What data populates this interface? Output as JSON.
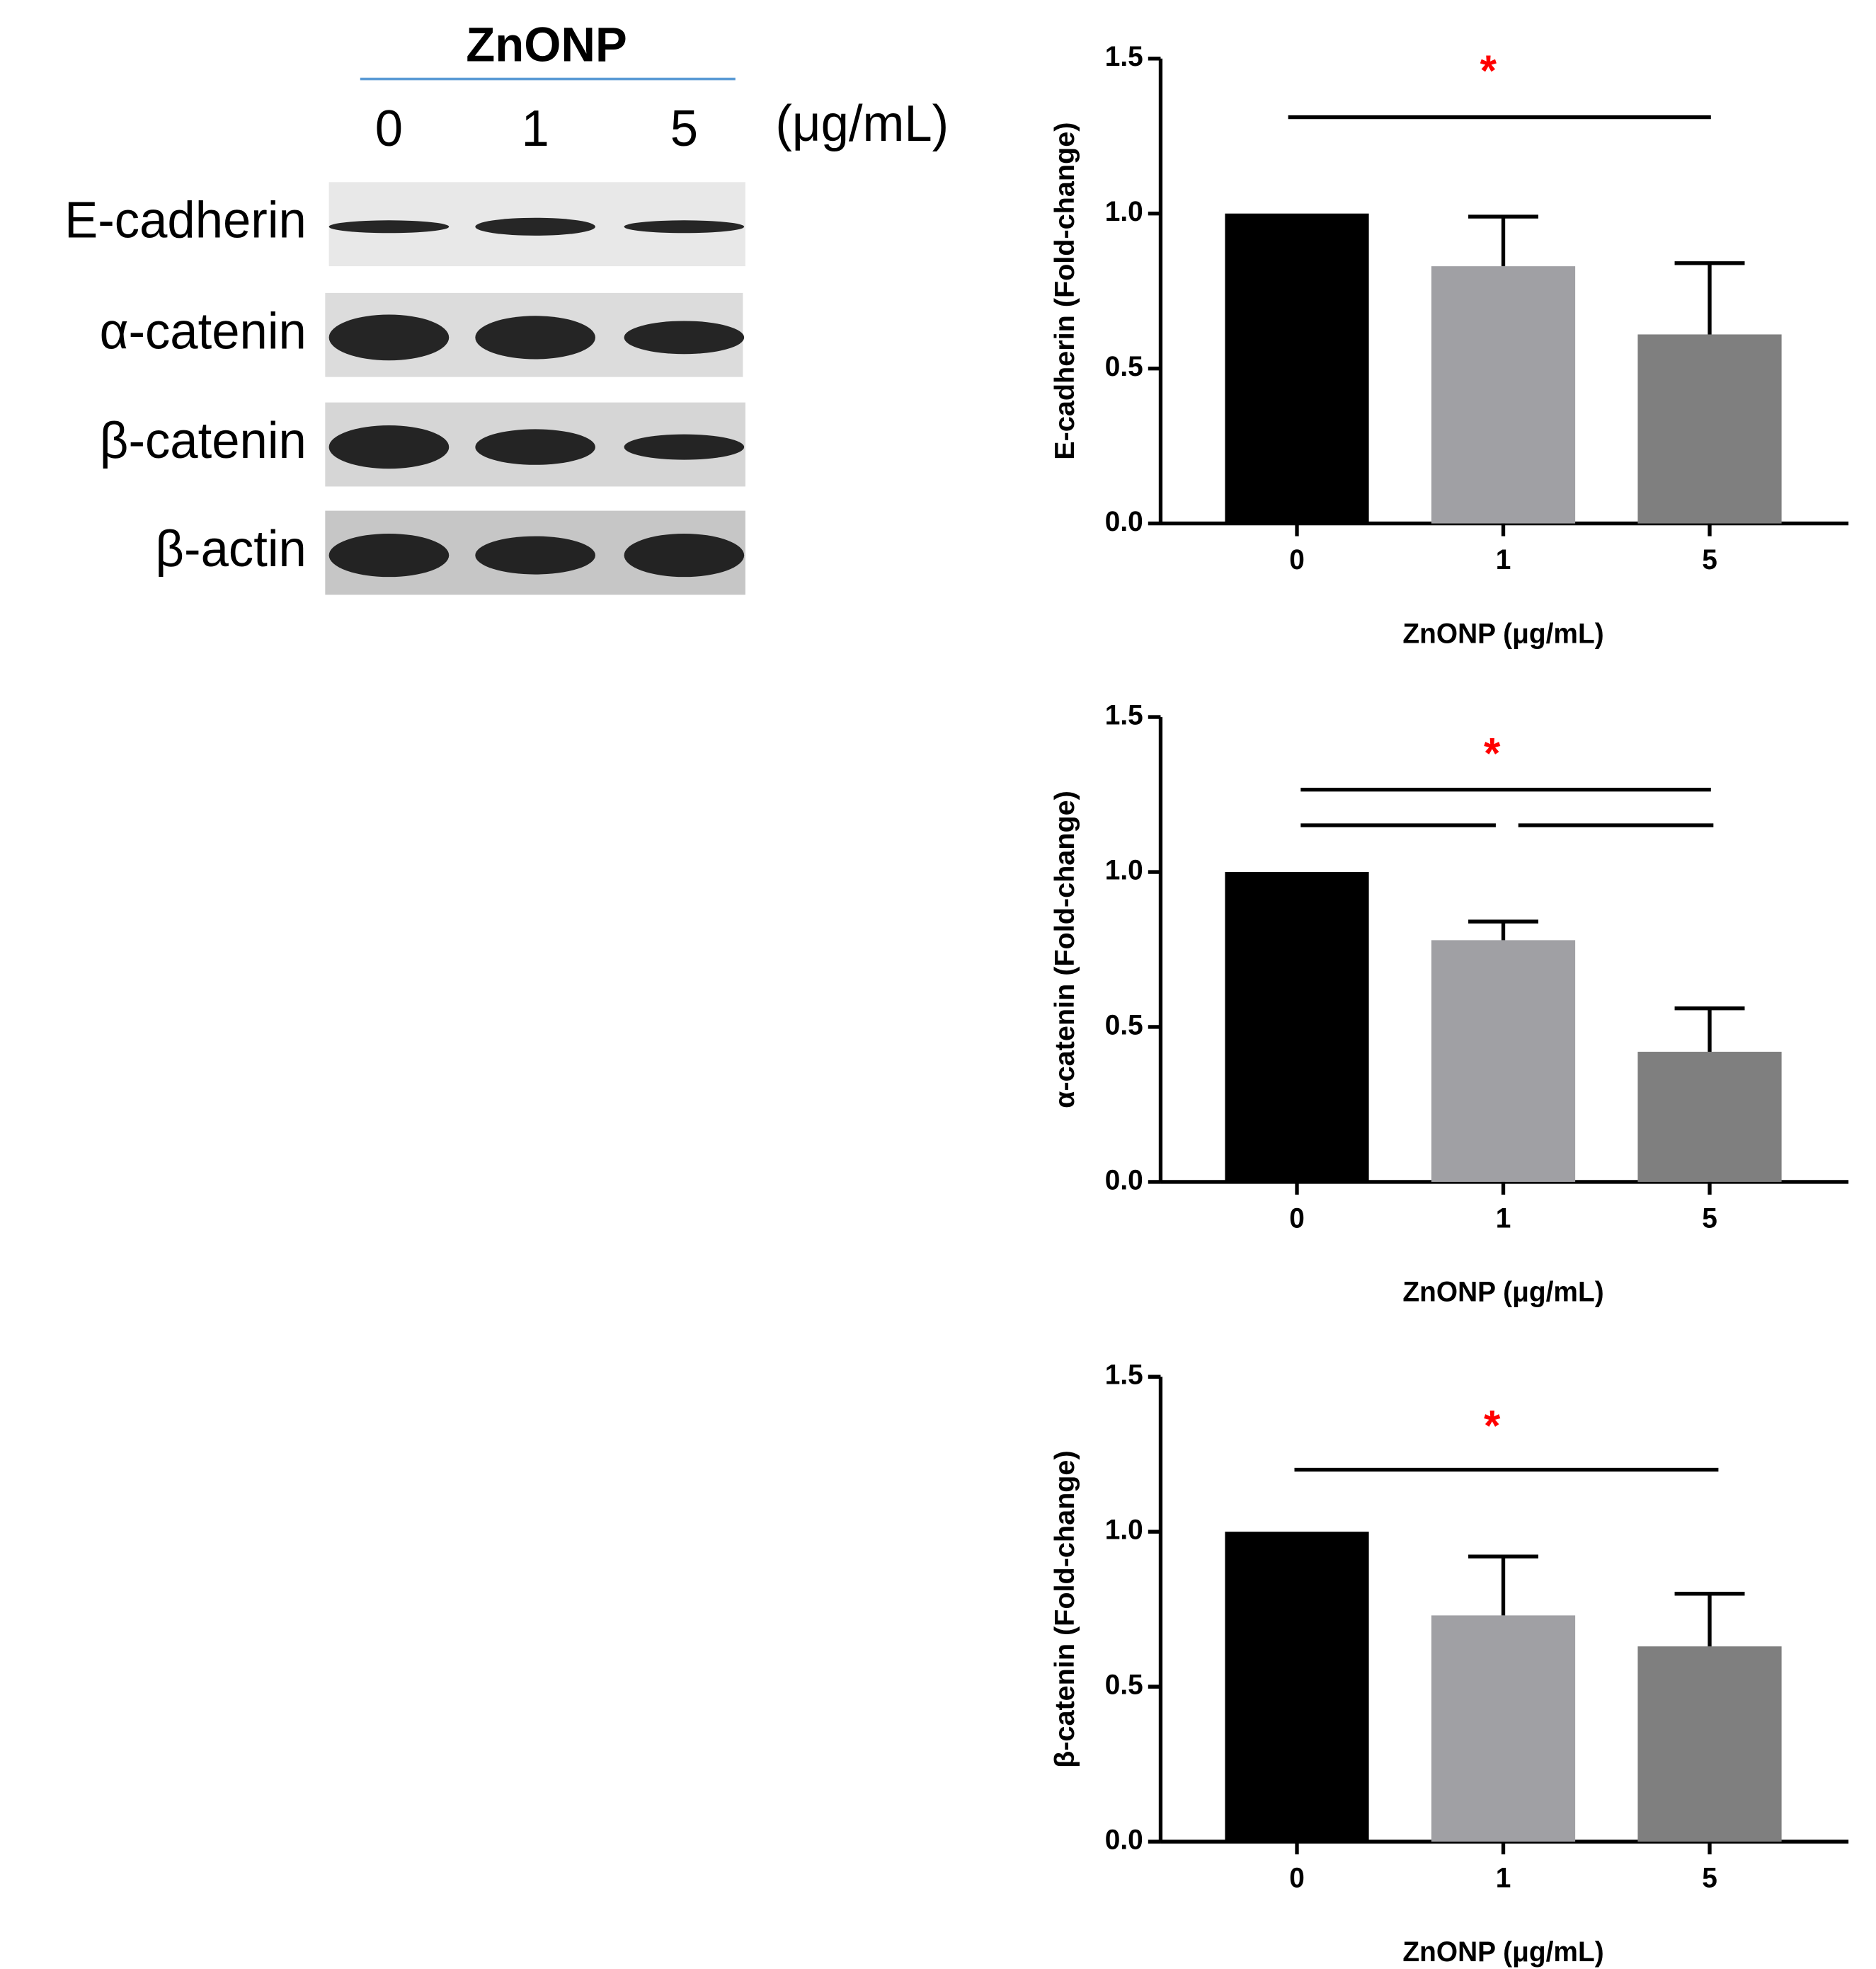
{
  "blot": {
    "title": "ZnONP",
    "lanes": [
      "0",
      "1",
      "5"
    ],
    "unit": "(μg/mL)",
    "rows": [
      "E-cadherin",
      "α-catenin",
      "β-catenin",
      "β-actin"
    ]
  },
  "chart_data": [
    {
      "type": "bar",
      "y_label": "E-cadherin (Fold-change)",
      "x_label": "ZnONP (μg/mL)",
      "annotation": "*",
      "categories": [
        "0",
        "1",
        "5"
      ],
      "values": [
        1.0,
        0.83,
        0.61
      ],
      "errors": [
        null,
        0.16,
        0.23
      ],
      "colors": [
        "#000000",
        "#a0a0a4",
        "#7f7f7f"
      ],
      "ylim": [
        0,
        1.5
      ],
      "yticks": [
        {
          "value": 0,
          "label": "0.0"
        },
        {
          "value": 0.5,
          "label": "0.5"
        },
        {
          "value": 1,
          "label": "1.0"
        },
        {
          "value": 1.5,
          "label": "1.5"
        }
      ]
    },
    {
      "type": "bar",
      "y_label": "α-catenin (Fold-change)",
      "x_label": "ZnONP (μg/mL)",
      "annotation": "*",
      "categories": [
        "0",
        "1",
        "5"
      ],
      "values": [
        1.0,
        0.78,
        0.42
      ],
      "errors": [
        null,
        0.06,
        0.14
      ],
      "colors": [
        "#000000",
        "#a0a0a4",
        "#7f7f7f"
      ],
      "ylim": [
        0,
        1.5
      ],
      "yticks": [
        {
          "value": 0,
          "label": "0.0"
        },
        {
          "value": 0.5,
          "label": "0.5"
        },
        {
          "value": 1,
          "label": "1.0"
        },
        {
          "value": 1.5,
          "label": "1.5"
        }
      ]
    },
    {
      "type": "bar",
      "y_label": "β-catenin (Fold-change)",
      "x_label": "ZnONP (μg/mL)",
      "annotation": "*",
      "categories": [
        "0",
        "1",
        "5"
      ],
      "values": [
        1.0,
        0.73,
        0.63
      ],
      "errors": [
        null,
        0.19,
        0.17
      ],
      "colors": [
        "#000000",
        "#a0a0a4",
        "#7f7f7f"
      ],
      "ylim": [
        0,
        1.5
      ],
      "yticks": [
        {
          "value": 0,
          "label": "0.0"
        },
        {
          "value": 0.5,
          "label": "0.5"
        },
        {
          "value": 1,
          "label": "1.0"
        },
        {
          "value": 1.5,
          "label": "1.5"
        }
      ]
    }
  ]
}
